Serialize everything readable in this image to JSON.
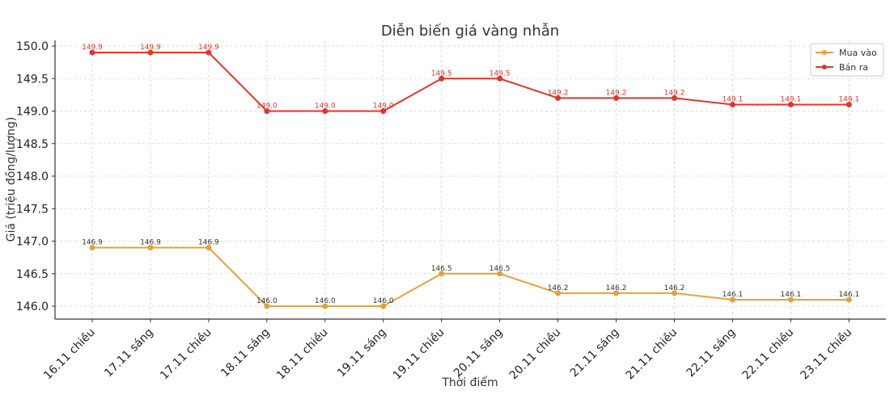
{
  "chart_data": {
    "type": "line",
    "title": "Diễn biến giá vàng nhẫn",
    "xlabel": "Thời điểm",
    "ylabel": "Giá (triệu đồng/lượng)",
    "categories": [
      "16.11 chiều",
      "17.11 sáng",
      "17.11 chiều",
      "18.11 sáng",
      "18.11 chiều",
      "19.11 sáng",
      "19.11 chiều",
      "20.11 sáng",
      "20.11 chiều",
      "21.11 sáng",
      "21.11 chiều",
      "22.11 sáng",
      "22.11 chiều",
      "23.11 chiều"
    ],
    "series": [
      {
        "name": "Mua vào",
        "color": "#E0A33B",
        "label_color": "#333333",
        "values": [
          146.9,
          146.9,
          146.9,
          146.0,
          146.0,
          146.0,
          146.5,
          146.5,
          146.2,
          146.2,
          146.2,
          146.1,
          146.1,
          146.1
        ]
      },
      {
        "name": "Bán ra",
        "color": "#E0362A",
        "label_color": "#E0362A",
        "values": [
          149.9,
          149.9,
          149.9,
          149.0,
          149.0,
          149.0,
          149.5,
          149.5,
          149.2,
          149.2,
          149.2,
          149.1,
          149.1,
          149.1
        ]
      }
    ],
    "yticks": [
      "146.0",
      "146.5",
      "147.0",
      "147.5",
      "148.0",
      "148.5",
      "149.0",
      "149.5",
      "150.0"
    ],
    "ylim": [
      145.8,
      150.1
    ],
    "grid": true,
    "legend_position": "upper right"
  }
}
